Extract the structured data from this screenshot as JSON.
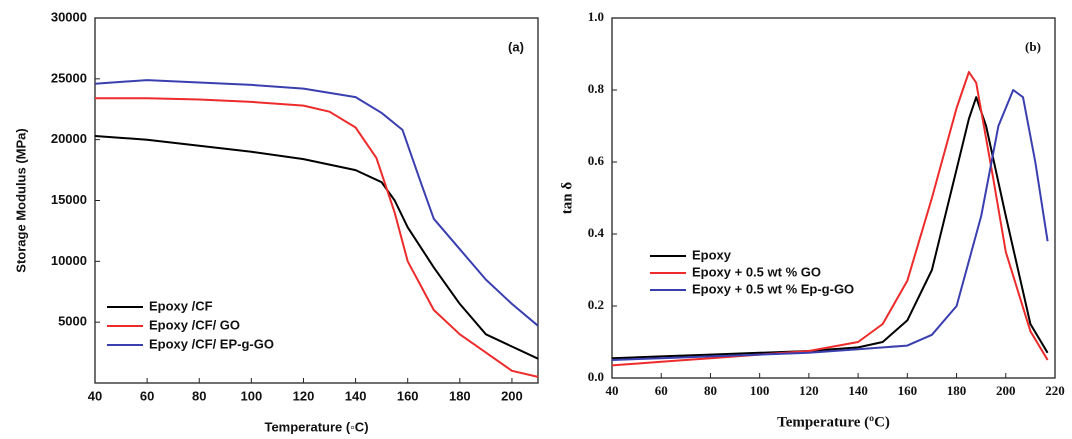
{
  "chart_data": [
    {
      "type": "line",
      "annotation": "(a)",
      "x_label": "Temperature (◦C)",
      "y_label": "Storage Modulus (MPa)",
      "xlim": [
        40,
        210
      ],
      "xticks": [
        40,
        60,
        80,
        100,
        120,
        140,
        160,
        180,
        200
      ],
      "ylim": [
        0,
        30000
      ],
      "yticks": [
        5000,
        10000,
        15000,
        20000,
        25000,
        30000
      ],
      "grid": false,
      "legend": "lower left",
      "series": [
        {
          "name": "Epoxy /CF",
          "color": "#000000",
          "x": [
            40,
            60,
            80,
            100,
            120,
            140,
            150,
            155,
            160,
            170,
            180,
            190,
            200,
            210
          ],
          "values": [
            20300,
            20000,
            19500,
            19000,
            18400,
            17500,
            16500,
            15000,
            12800,
            9500,
            6500,
            4000,
            3000,
            2000
          ]
        },
        {
          "name": "Epoxy /CF/ GO",
          "color": "#ee2b2b",
          "x": [
            40,
            60,
            80,
            100,
            120,
            130,
            140,
            148,
            155,
            160,
            170,
            180,
            190,
            200,
            210
          ],
          "values": [
            23400,
            23400,
            23300,
            23100,
            22800,
            22300,
            21000,
            18500,
            14000,
            10000,
            6000,
            4000,
            2500,
            1000,
            500
          ]
        },
        {
          "name": "Epoxy /CF/ EP-g-GO",
          "color": "#3a3fb0",
          "x": [
            40,
            60,
            80,
            100,
            120,
            140,
            150,
            158,
            165,
            170,
            180,
            190,
            200,
            210
          ],
          "values": [
            24600,
            24900,
            24700,
            24500,
            24200,
            23500,
            22200,
            20800,
            16500,
            13500,
            11000,
            8500,
            6500,
            4700
          ]
        }
      ]
    },
    {
      "type": "line",
      "annotation": "(b)",
      "x_label": "Temperature (ºC)",
      "y_label": "tan δ",
      "xlim": [
        40,
        220
      ],
      "xticks": [
        40,
        60,
        80,
        100,
        120,
        140,
        160,
        180,
        200,
        220
      ],
      "ylim": [
        0,
        1
      ],
      "yticks": [
        {
          "value": 0,
          "label": "0.0"
        },
        0.2,
        0.4,
        0.6,
        0.8,
        {
          "value": 1,
          "label": "1.0"
        }
      ],
      "grid": false,
      "legend": "center left",
      "series": [
        {
          "name": "Epoxy",
          "color": "#000000",
          "x": [
            40,
            60,
            80,
            100,
            120,
            140,
            150,
            160,
            170,
            180,
            185,
            188,
            192,
            200,
            210,
            217
          ],
          "values": [
            0.055,
            0.06,
            0.065,
            0.07,
            0.075,
            0.085,
            0.1,
            0.16,
            0.3,
            0.58,
            0.72,
            0.78,
            0.7,
            0.45,
            0.15,
            0.07
          ]
        },
        {
          "name": "Epoxy + 0.5 wt % GO",
          "color": "#ee2b2b",
          "x": [
            40,
            60,
            80,
            100,
            120,
            140,
            150,
            160,
            170,
            180,
            185,
            188,
            195,
            200,
            210,
            217
          ],
          "values": [
            0.035,
            0.045,
            0.055,
            0.065,
            0.075,
            0.1,
            0.15,
            0.27,
            0.5,
            0.75,
            0.85,
            0.82,
            0.55,
            0.35,
            0.13,
            0.05
          ]
        },
        {
          "name": "Epoxy + 0.5 wt % Ep-g-GO",
          "color": "#3a3fb0",
          "x": [
            40,
            60,
            80,
            100,
            120,
            140,
            160,
            170,
            180,
            190,
            197,
            203,
            207,
            212,
            217
          ],
          "values": [
            0.05,
            0.055,
            0.06,
            0.065,
            0.07,
            0.08,
            0.09,
            0.12,
            0.2,
            0.45,
            0.7,
            0.8,
            0.78,
            0.6,
            0.38
          ]
        }
      ]
    }
  ]
}
